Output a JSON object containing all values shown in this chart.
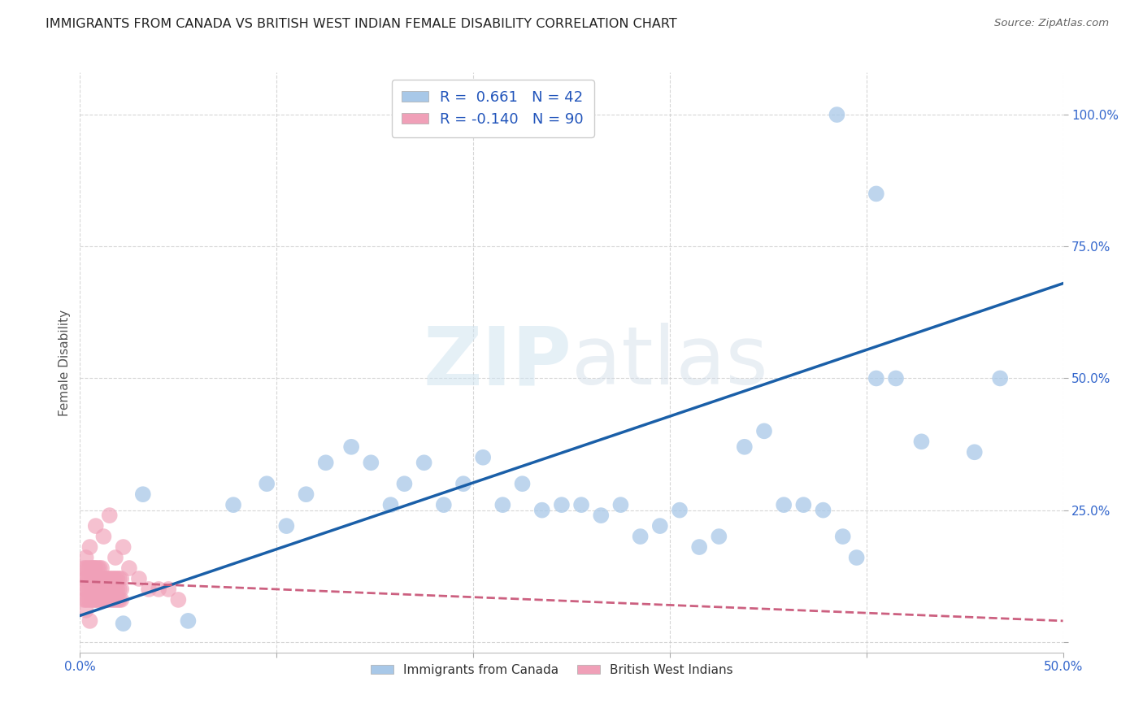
{
  "title": "IMMIGRANTS FROM CANADA VS BRITISH WEST INDIAN FEMALE DISABILITY CORRELATION CHART",
  "source": "Source: ZipAtlas.com",
  "ylabel": "Female Disability",
  "xlim": [
    0.0,
    0.5
  ],
  "ylim": [
    -0.02,
    1.08
  ],
  "canada_R": 0.661,
  "canada_N": 42,
  "bwi_R": -0.14,
  "bwi_N": 90,
  "canada_color": "#a8c8e8",
  "bwi_color": "#f0a0b8",
  "canada_line_color": "#1a5fa8",
  "bwi_line_color": "#cc6080",
  "watermark_zip": "ZIP",
  "watermark_atlas": "atlas",
  "canada_line_x0": 0.0,
  "canada_line_y0": 0.05,
  "canada_line_x1": 0.5,
  "canada_line_y1": 0.68,
  "bwi_line_x0": 0.0,
  "bwi_line_y0": 0.115,
  "bwi_line_x1": 0.5,
  "bwi_line_y1": 0.04,
  "canada_x": [
    0.022,
    0.055,
    0.032,
    0.078,
    0.095,
    0.105,
    0.115,
    0.125,
    0.138,
    0.148,
    0.158,
    0.165,
    0.175,
    0.185,
    0.195,
    0.205,
    0.215,
    0.225,
    0.235,
    0.245,
    0.255,
    0.265,
    0.275,
    0.285,
    0.295,
    0.305,
    0.315,
    0.325,
    0.338,
    0.348,
    0.358,
    0.368,
    0.378,
    0.388,
    0.395,
    0.405,
    0.415,
    0.428,
    0.455,
    0.468,
    0.405,
    0.385
  ],
  "canada_y": [
    0.035,
    0.04,
    0.28,
    0.26,
    0.3,
    0.22,
    0.28,
    0.34,
    0.37,
    0.34,
    0.26,
    0.3,
    0.34,
    0.26,
    0.3,
    0.35,
    0.26,
    0.3,
    0.25,
    0.26,
    0.26,
    0.24,
    0.26,
    0.2,
    0.22,
    0.25,
    0.18,
    0.2,
    0.37,
    0.4,
    0.26,
    0.26,
    0.25,
    0.2,
    0.16,
    0.5,
    0.5,
    0.38,
    0.36,
    0.5,
    0.85,
    1.0
  ],
  "bwi_x": [
    0.002,
    0.003,
    0.004,
    0.005,
    0.006,
    0.007,
    0.008,
    0.009,
    0.01,
    0.011,
    0.012,
    0.013,
    0.014,
    0.015,
    0.016,
    0.017,
    0.018,
    0.019,
    0.02,
    0.021,
    0.002,
    0.003,
    0.004,
    0.005,
    0.006,
    0.007,
    0.008,
    0.009,
    0.01,
    0.011,
    0.012,
    0.013,
    0.014,
    0.015,
    0.016,
    0.017,
    0.018,
    0.019,
    0.02,
    0.021,
    0.002,
    0.003,
    0.004,
    0.005,
    0.006,
    0.007,
    0.008,
    0.009,
    0.01,
    0.011,
    0.012,
    0.013,
    0.014,
    0.015,
    0.016,
    0.017,
    0.018,
    0.019,
    0.02,
    0.021,
    0.002,
    0.003,
    0.004,
    0.005,
    0.006,
    0.007,
    0.008,
    0.009,
    0.01,
    0.011,
    0.003,
    0.005,
    0.007,
    0.01,
    0.013,
    0.016,
    0.008,
    0.012,
    0.018,
    0.022,
    0.025,
    0.03,
    0.035,
    0.04,
    0.045,
    0.05,
    0.003,
    0.005,
    0.008,
    0.015
  ],
  "bwi_y": [
    0.1,
    0.1,
    0.1,
    0.1,
    0.1,
    0.1,
    0.1,
    0.1,
    0.1,
    0.1,
    0.1,
    0.1,
    0.1,
    0.1,
    0.1,
    0.1,
    0.1,
    0.1,
    0.1,
    0.1,
    0.12,
    0.12,
    0.12,
    0.12,
    0.12,
    0.12,
    0.12,
    0.12,
    0.12,
    0.12,
    0.12,
    0.12,
    0.12,
    0.12,
    0.12,
    0.12,
    0.12,
    0.12,
    0.12,
    0.12,
    0.08,
    0.08,
    0.08,
    0.08,
    0.08,
    0.08,
    0.08,
    0.08,
    0.08,
    0.08,
    0.08,
    0.08,
    0.08,
    0.08,
    0.08,
    0.08,
    0.08,
    0.08,
    0.08,
    0.08,
    0.14,
    0.14,
    0.14,
    0.14,
    0.14,
    0.14,
    0.14,
    0.14,
    0.14,
    0.14,
    0.16,
    0.18,
    0.14,
    0.12,
    0.1,
    0.1,
    0.22,
    0.2,
    0.16,
    0.18,
    0.14,
    0.12,
    0.1,
    0.1,
    0.1,
    0.08,
    0.06,
    0.04,
    0.08,
    0.24
  ]
}
